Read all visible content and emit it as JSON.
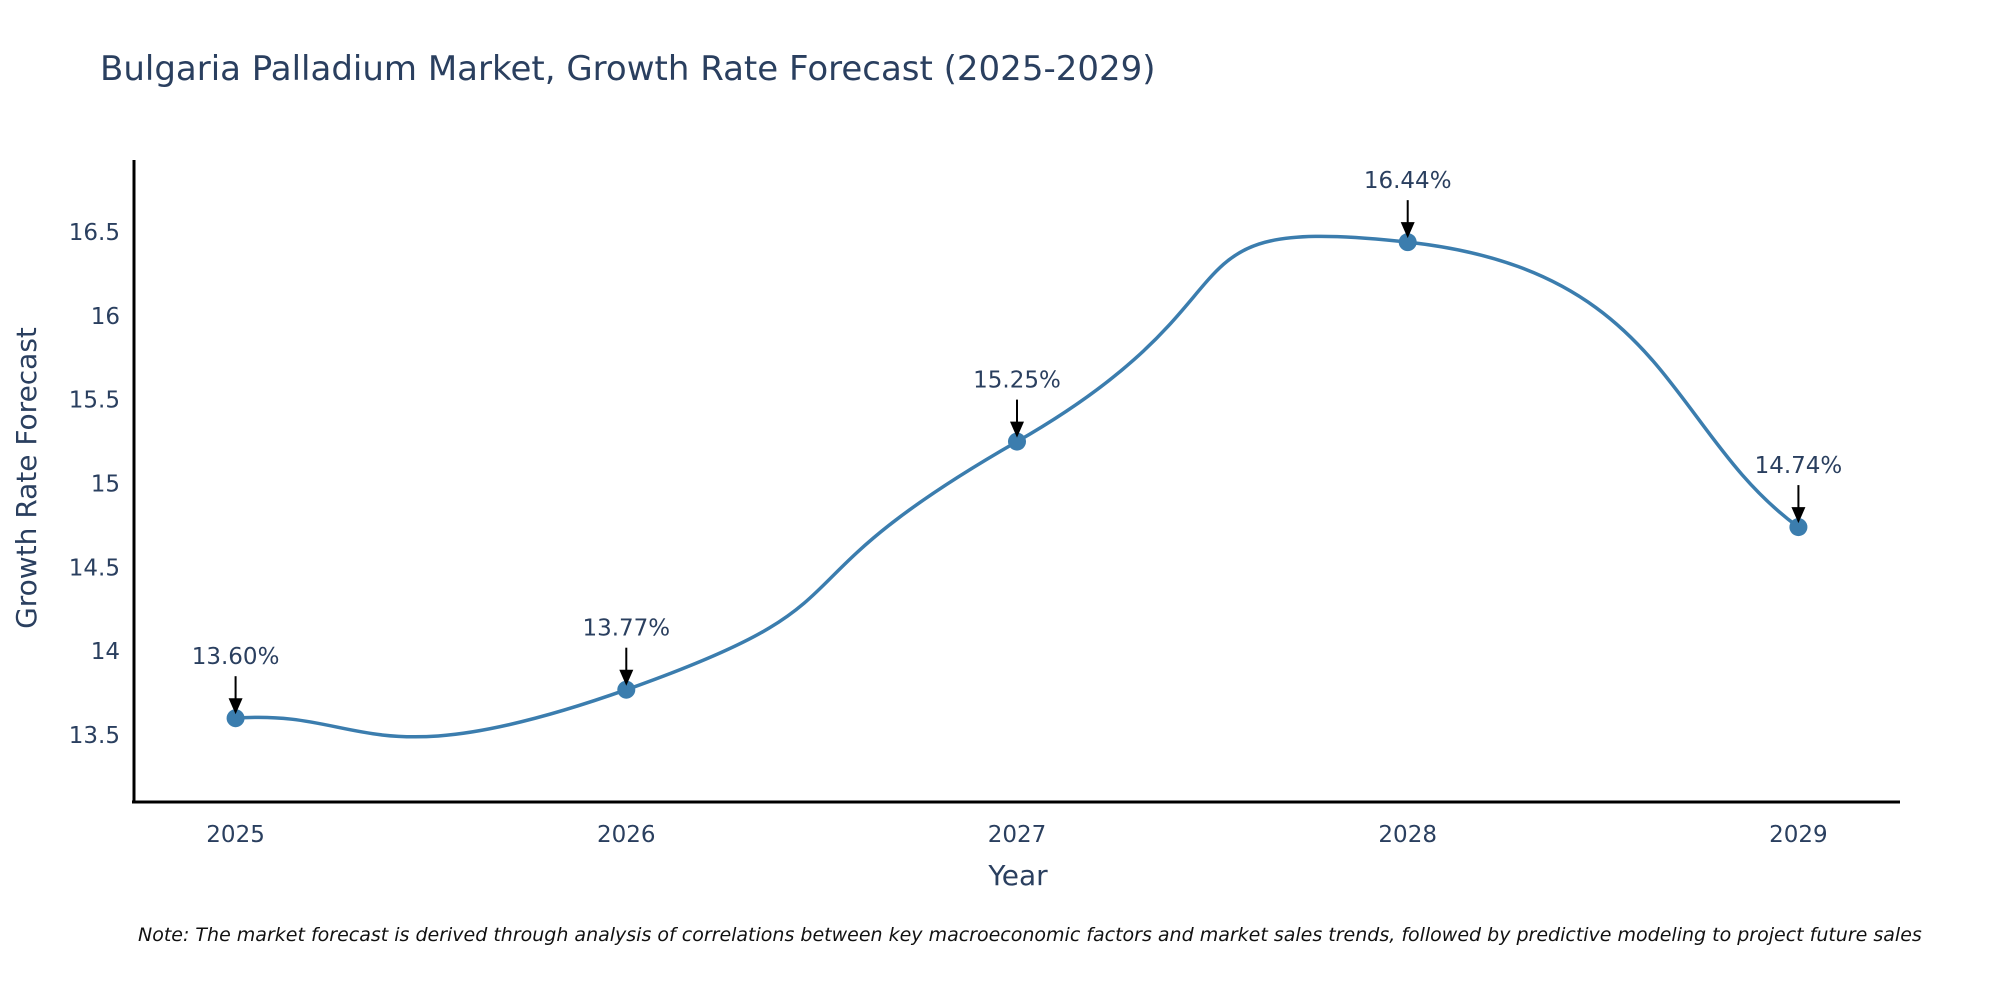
{
  "chart_data": {
    "type": "line",
    "title": "Bulgaria Palladium Market, Growth Rate Forecast (2025-2029)",
    "xlabel": "Year",
    "ylabel": "Growth Rate Forecast",
    "categories": [
      "2025",
      "2026",
      "2027",
      "2028",
      "2029"
    ],
    "values": [
      13.6,
      13.77,
      15.25,
      16.44,
      14.74
    ],
    "data_labels": [
      "13.60%",
      "13.77%",
      "15.25%",
      "16.44%",
      "14.74%"
    ],
    "yticks": [
      13.5,
      14,
      14.5,
      15,
      15.5,
      16,
      16.5
    ],
    "ytick_labels": [
      "13.5",
      "14",
      "14.5",
      "15",
      "15.5",
      "16",
      "16.5"
    ],
    "ylim": [
      13.1,
      16.93
    ],
    "xlim": [
      -0.26,
      4.26
    ],
    "grid": false,
    "legend": "none",
    "line_shape": "spline",
    "annotation_arrows": true,
    "line_color": "#3b7dae",
    "marker_color": "#3b7dae",
    "note": "Note: The market forecast is derived through analysis of correlations between key macroeconomic factors and market sales trends, followed by predictive modeling to project future sales"
  }
}
